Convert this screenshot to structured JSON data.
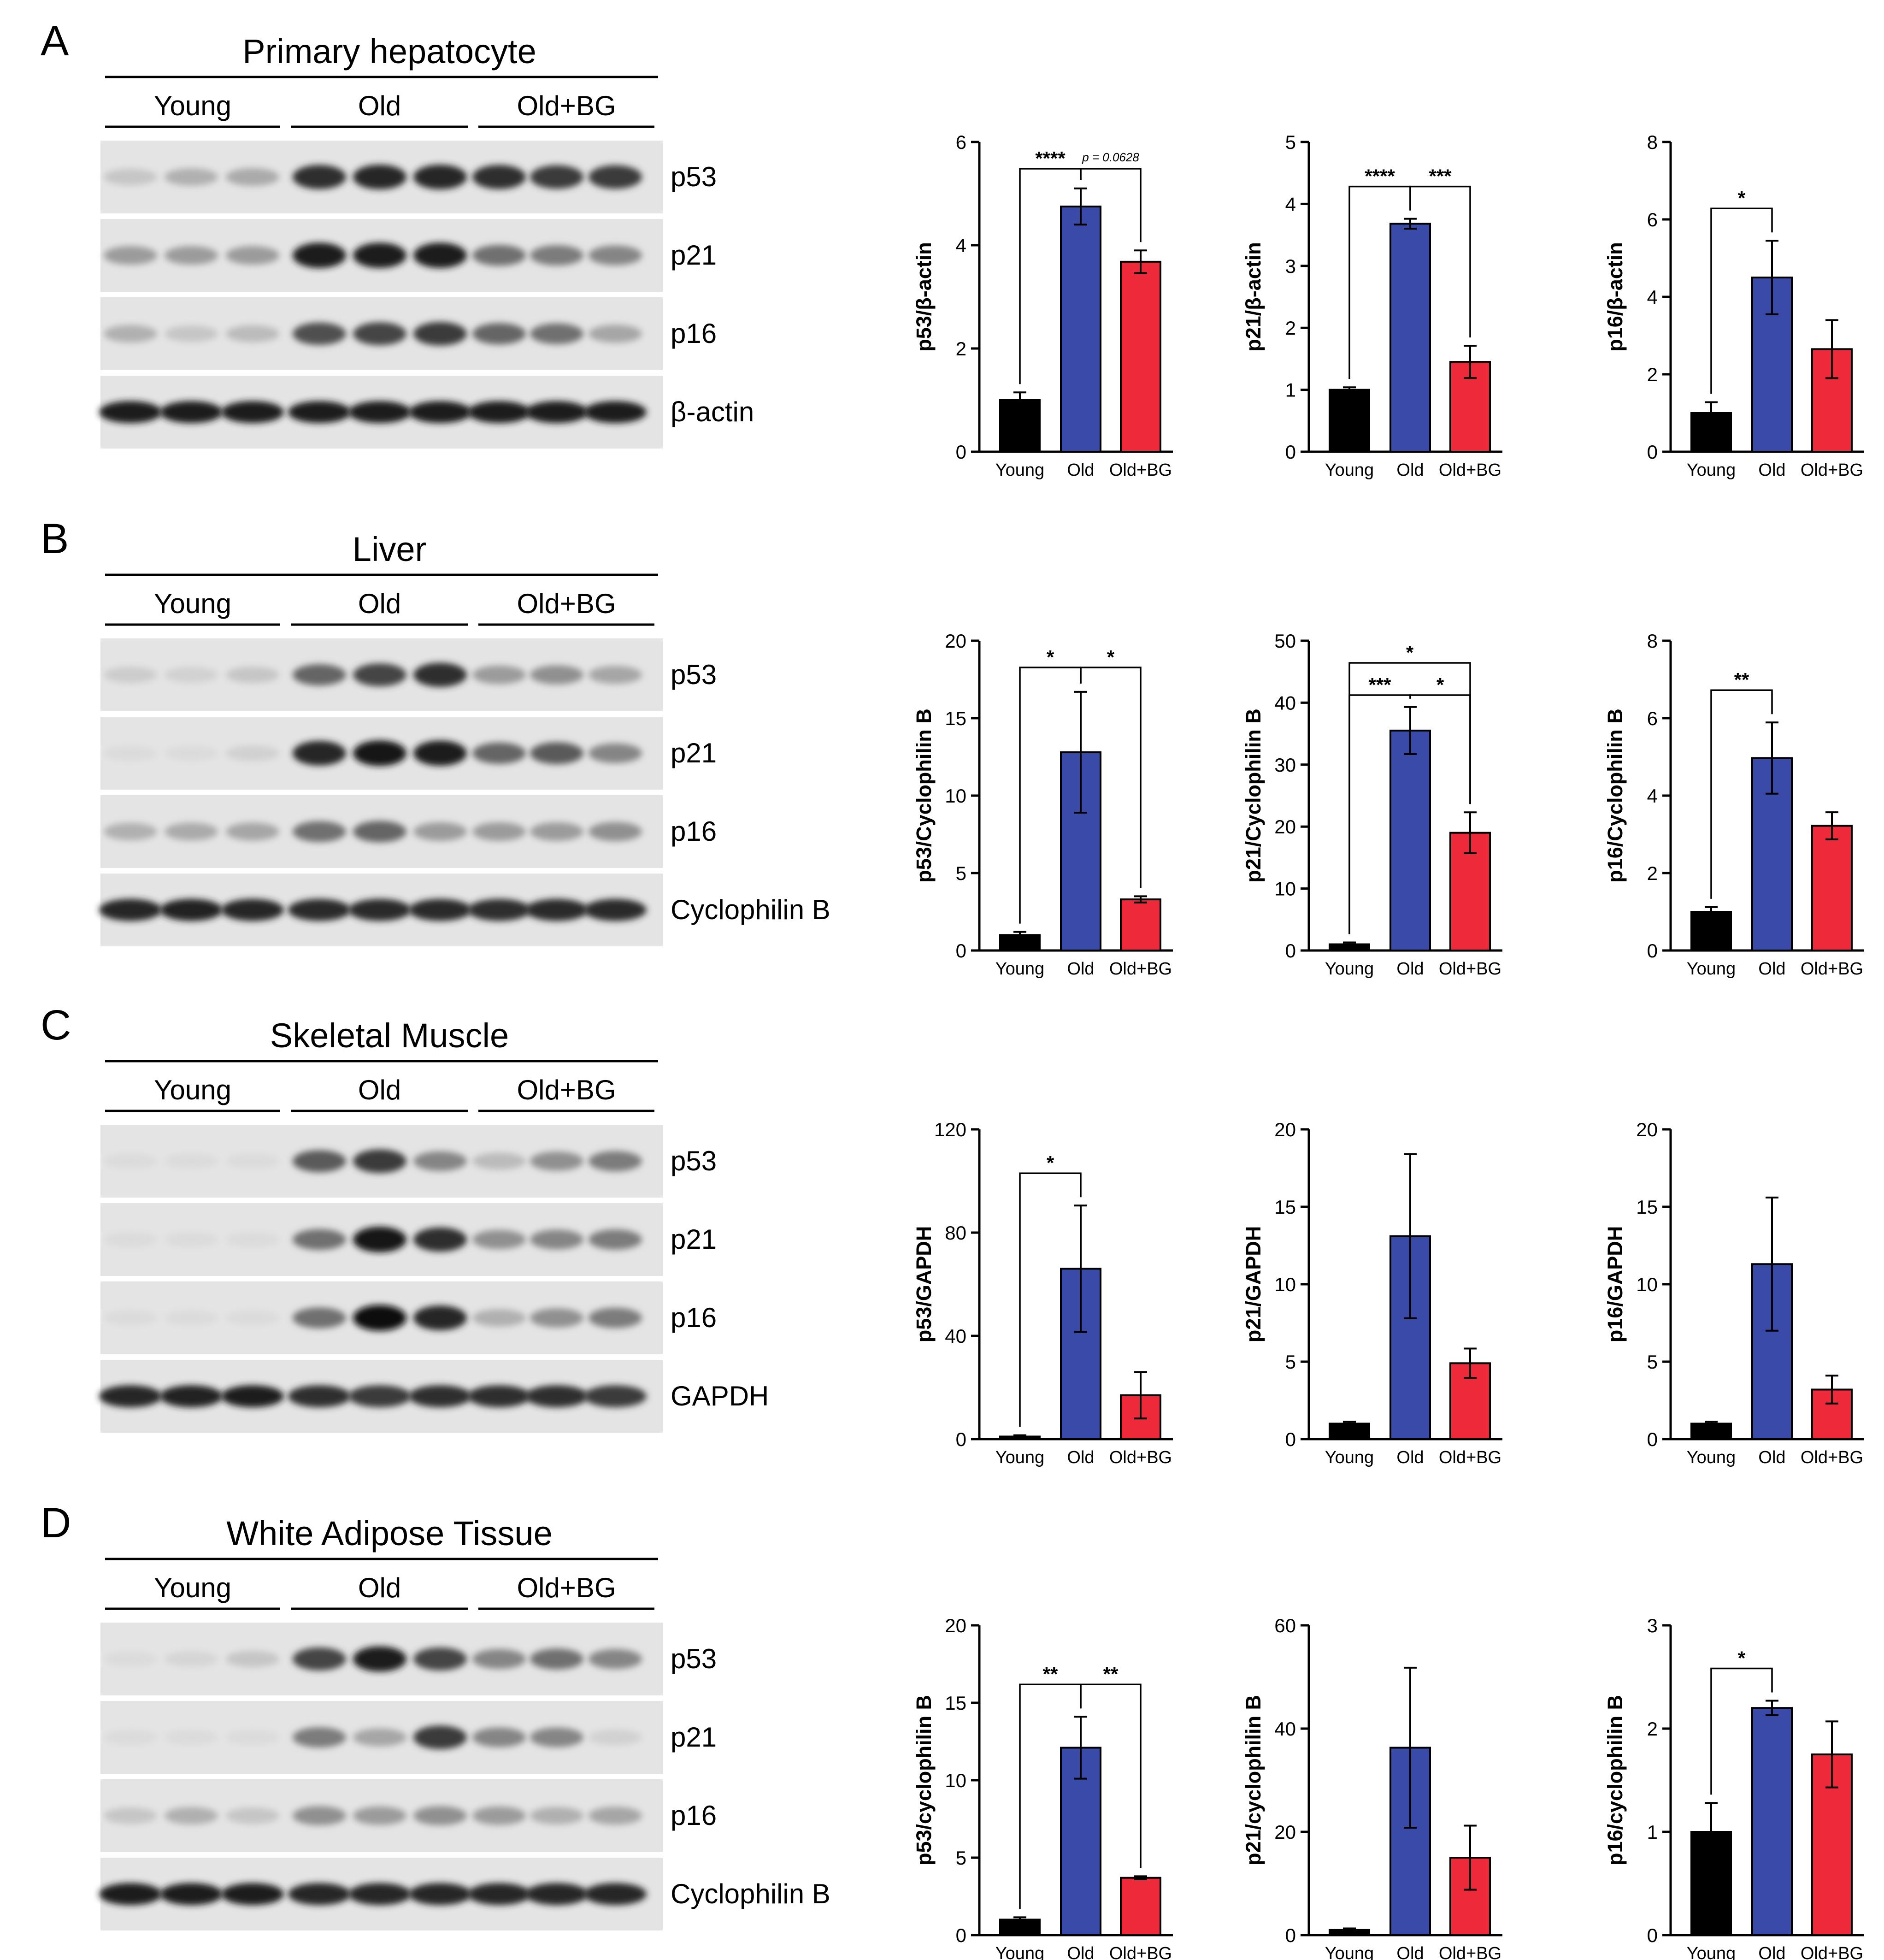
{
  "rows": [
    {
      "letter": "A",
      "title": "Primary hepatocyte",
      "groups": [
        "Young",
        "Old",
        "Old+BG"
      ],
      "bands": [
        "p53",
        "p21",
        "p16",
        "β-actin"
      ]
    },
    {
      "letter": "B",
      "title": "Liver",
      "groups": [
        "Young",
        "Old",
        "Old+BG"
      ],
      "bands": [
        "p53",
        "p21",
        "p16",
        "Cyclophilin B"
      ]
    },
    {
      "letter": "C",
      "title": "Skeletal Muscle",
      "groups": [
        "Young",
        "Old",
        "Old+BG"
      ],
      "bands": [
        "p53",
        "p21",
        "p16",
        "GAPDH"
      ]
    },
    {
      "letter": "D",
      "title": "White Adipose Tissue",
      "groups": [
        "Young",
        "Old",
        "Old+BG"
      ],
      "bands": [
        "p53",
        "p21",
        "p16",
        "Cyclophilin B"
      ]
    }
  ],
  "blot_intensities": [
    [
      [
        0.15,
        0.25,
        0.28,
        0.85,
        0.9,
        0.9,
        0.85,
        0.8,
        0.8
      ],
      [
        0.35,
        0.35,
        0.35,
        0.95,
        0.95,
        0.95,
        0.55,
        0.5,
        0.45
      ],
      [
        0.25,
        0.15,
        0.2,
        0.7,
        0.75,
        0.8,
        0.6,
        0.55,
        0.3
      ],
      [
        0.95,
        0.95,
        0.95,
        0.95,
        0.95,
        0.95,
        0.95,
        0.95,
        0.95
      ]
    ],
    [
      [
        0.12,
        0.1,
        0.15,
        0.6,
        0.75,
        0.85,
        0.35,
        0.4,
        0.3
      ],
      [
        0.05,
        0.05,
        0.1,
        0.9,
        0.98,
        0.95,
        0.6,
        0.65,
        0.45
      ],
      [
        0.25,
        0.28,
        0.3,
        0.55,
        0.6,
        0.35,
        0.35,
        0.35,
        0.4
      ],
      [
        0.9,
        0.92,
        0.9,
        0.88,
        0.88,
        0.88,
        0.85,
        0.88,
        0.88
      ]
    ],
    [
      [
        0.05,
        0.05,
        0.05,
        0.65,
        0.8,
        0.45,
        0.2,
        0.4,
        0.5
      ],
      [
        0.05,
        0.05,
        0.05,
        0.55,
        0.98,
        0.85,
        0.4,
        0.45,
        0.5
      ],
      [
        0.05,
        0.05,
        0.05,
        0.55,
        1.0,
        0.9,
        0.25,
        0.4,
        0.5
      ],
      [
        0.9,
        0.92,
        0.95,
        0.85,
        0.8,
        0.85,
        0.85,
        0.85,
        0.8
      ]
    ],
    [
      [
        0.05,
        0.08,
        0.15,
        0.75,
        0.95,
        0.75,
        0.45,
        0.55,
        0.45
      ],
      [
        0.05,
        0.05,
        0.05,
        0.5,
        0.3,
        0.8,
        0.45,
        0.45,
        0.1
      ],
      [
        0.15,
        0.25,
        0.15,
        0.4,
        0.35,
        0.4,
        0.35,
        0.25,
        0.3
      ],
      [
        0.95,
        0.95,
        0.95,
        0.9,
        0.9,
        0.9,
        0.9,
        0.9,
        0.9
      ]
    ]
  ],
  "chart_data": [
    {
      "type": "bar",
      "ylabel": "p53/β-actin",
      "categories": [
        "Young",
        "Old",
        "Old+BG"
      ],
      "values": [
        1.0,
        4.75,
        3.68
      ],
      "errors": [
        0.15,
        0.35,
        0.22
      ],
      "ylim": [
        0,
        6
      ],
      "yticks": [
        0,
        2,
        4,
        6
      ],
      "colors": [
        "#000000",
        "#3a4aa8",
        "#ee2a3a"
      ],
      "annotations": [
        {
          "from": 0,
          "to": 1,
          "text": "****"
        },
        {
          "from": 1,
          "to": 2,
          "text": "p = 0.0628"
        }
      ]
    },
    {
      "type": "bar",
      "ylabel": "p21/β-actin",
      "categories": [
        "Young",
        "Old",
        "Old+BG"
      ],
      "values": [
        1.0,
        3.68,
        1.45
      ],
      "errors": [
        0.04,
        0.08,
        0.26
      ],
      "ylim": [
        0,
        5
      ],
      "yticks": [
        0,
        1,
        2,
        3,
        4,
        5
      ],
      "colors": [
        "#000000",
        "#3a4aa8",
        "#ee2a3a"
      ],
      "annotations": [
        {
          "from": 0,
          "to": 1,
          "text": "****"
        },
        {
          "from": 1,
          "to": 2,
          "text": "***"
        }
      ]
    },
    {
      "type": "bar",
      "ylabel": "p16/β-actin",
      "categories": [
        "Young",
        "Old",
        "Old+BG"
      ],
      "values": [
        1.0,
        4.5,
        2.65
      ],
      "errors": [
        0.28,
        0.95,
        0.75
      ],
      "ylim": [
        0,
        8
      ],
      "yticks": [
        0,
        2,
        4,
        6,
        8
      ],
      "colors": [
        "#000000",
        "#3a4aa8",
        "#ee2a3a"
      ],
      "annotations": [
        {
          "from": 0,
          "to": 1,
          "text": "*"
        }
      ]
    },
    {
      "type": "bar",
      "ylabel": "p53/Cyclophilin B",
      "categories": [
        "Young",
        "Old",
        "Old+BG"
      ],
      "values": [
        1.0,
        12.8,
        3.3
      ],
      "errors": [
        0.2,
        3.9,
        0.2
      ],
      "ylim": [
        0,
        20
      ],
      "yticks": [
        0,
        5,
        10,
        15,
        20
      ],
      "colors": [
        "#000000",
        "#3a4aa8",
        "#ee2a3a"
      ],
      "annotations": [
        {
          "from": 0,
          "to": 1,
          "text": "*"
        },
        {
          "from": 1,
          "to": 2,
          "text": "*"
        }
      ]
    },
    {
      "type": "bar",
      "ylabel": "p21/Cyclophilin B",
      "categories": [
        "Young",
        "Old",
        "Old+BG"
      ],
      "values": [
        1.0,
        35.5,
        19.0
      ],
      "errors": [
        0.3,
        3.8,
        3.3
      ],
      "ylim": [
        0,
        50
      ],
      "yticks": [
        0,
        10,
        20,
        30,
        40,
        50
      ],
      "colors": [
        "#000000",
        "#3a4aa8",
        "#ee2a3a"
      ],
      "annotations": [
        {
          "from": 0,
          "to": 1,
          "text": "***"
        },
        {
          "from": 1,
          "to": 2,
          "text": "*"
        },
        {
          "from": 0,
          "to": 2,
          "text": "*",
          "level": 2
        }
      ]
    },
    {
      "type": "bar",
      "ylabel": "p16/Cyclophilin B",
      "categories": [
        "Young",
        "Old",
        "Old+BG"
      ],
      "values": [
        1.0,
        4.97,
        3.22
      ],
      "errors": [
        0.12,
        0.92,
        0.35
      ],
      "ylim": [
        0,
        8
      ],
      "yticks": [
        0,
        2,
        4,
        6,
        8
      ],
      "colors": [
        "#000000",
        "#3a4aa8",
        "#ee2a3a"
      ],
      "annotations": [
        {
          "from": 0,
          "to": 1,
          "text": "**"
        }
      ]
    },
    {
      "type": "bar",
      "ylabel": "p53/GAPDH",
      "categories": [
        "Young",
        "Old",
        "Old+BG"
      ],
      "values": [
        1.0,
        66.0,
        17.0
      ],
      "errors": [
        0.5,
        24.5,
        9.0
      ],
      "ylim": [
        0,
        120
      ],
      "yticks": [
        0,
        40,
        80,
        120
      ],
      "colors": [
        "#000000",
        "#3a4aa8",
        "#ee2a3a"
      ],
      "annotations": [
        {
          "from": 0,
          "to": 1,
          "text": "*"
        }
      ]
    },
    {
      "type": "bar",
      "ylabel": "p21/GAPDH",
      "categories": [
        "Young",
        "Old",
        "Old+BG"
      ],
      "values": [
        1.0,
        13.1,
        4.9
      ],
      "errors": [
        0.12,
        5.3,
        0.95
      ],
      "ylim": [
        0,
        20
      ],
      "yticks": [
        0,
        5,
        10,
        15,
        20
      ],
      "colors": [
        "#000000",
        "#3a4aa8",
        "#ee2a3a"
      ],
      "annotations": []
    },
    {
      "type": "bar",
      "ylabel": "p16/GAPDH",
      "categories": [
        "Young",
        "Old",
        "Old+BG"
      ],
      "values": [
        1.0,
        11.3,
        3.2
      ],
      "errors": [
        0.12,
        4.3,
        0.9
      ],
      "ylim": [
        0,
        20
      ],
      "yticks": [
        0,
        5,
        10,
        15,
        20
      ],
      "colors": [
        "#000000",
        "#3a4aa8",
        "#ee2a3a"
      ],
      "annotations": []
    },
    {
      "type": "bar",
      "ylabel": "p53/cyclophilin B",
      "categories": [
        "Young",
        "Old",
        "Old+BG"
      ],
      "values": [
        1.0,
        12.1,
        3.7
      ],
      "errors": [
        0.15,
        2.0,
        0.1
      ],
      "ylim": [
        0,
        20
      ],
      "yticks": [
        0,
        5,
        10,
        15,
        20
      ],
      "colors": [
        "#000000",
        "#3a4aa8",
        "#ee2a3a"
      ],
      "annotations": [
        {
          "from": 0,
          "to": 1,
          "text": "**"
        },
        {
          "from": 1,
          "to": 2,
          "text": "**"
        }
      ]
    },
    {
      "type": "bar",
      "ylabel": "p21/cyclophilin B",
      "categories": [
        "Young",
        "Old",
        "Old+BG"
      ],
      "values": [
        1.0,
        36.3,
        15.0
      ],
      "errors": [
        0.3,
        15.5,
        6.2
      ],
      "ylim": [
        0,
        60
      ],
      "yticks": [
        0,
        20,
        40,
        60
      ],
      "colors": [
        "#000000",
        "#3a4aa8",
        "#ee2a3a"
      ],
      "annotations": []
    },
    {
      "type": "bar",
      "ylabel": "p16/cyclophilin B",
      "categories": [
        "Young",
        "Old",
        "Old+BG"
      ],
      "values": [
        1.0,
        2.2,
        1.75
      ],
      "errors": [
        0.28,
        0.07,
        0.32
      ],
      "ylim": [
        0,
        3
      ],
      "yticks": [
        0,
        1,
        2,
        3
      ],
      "colors": [
        "#000000",
        "#3a4aa8",
        "#ee2a3a"
      ],
      "annotations": [
        {
          "from": 0,
          "to": 1,
          "text": "*"
        }
      ]
    }
  ]
}
